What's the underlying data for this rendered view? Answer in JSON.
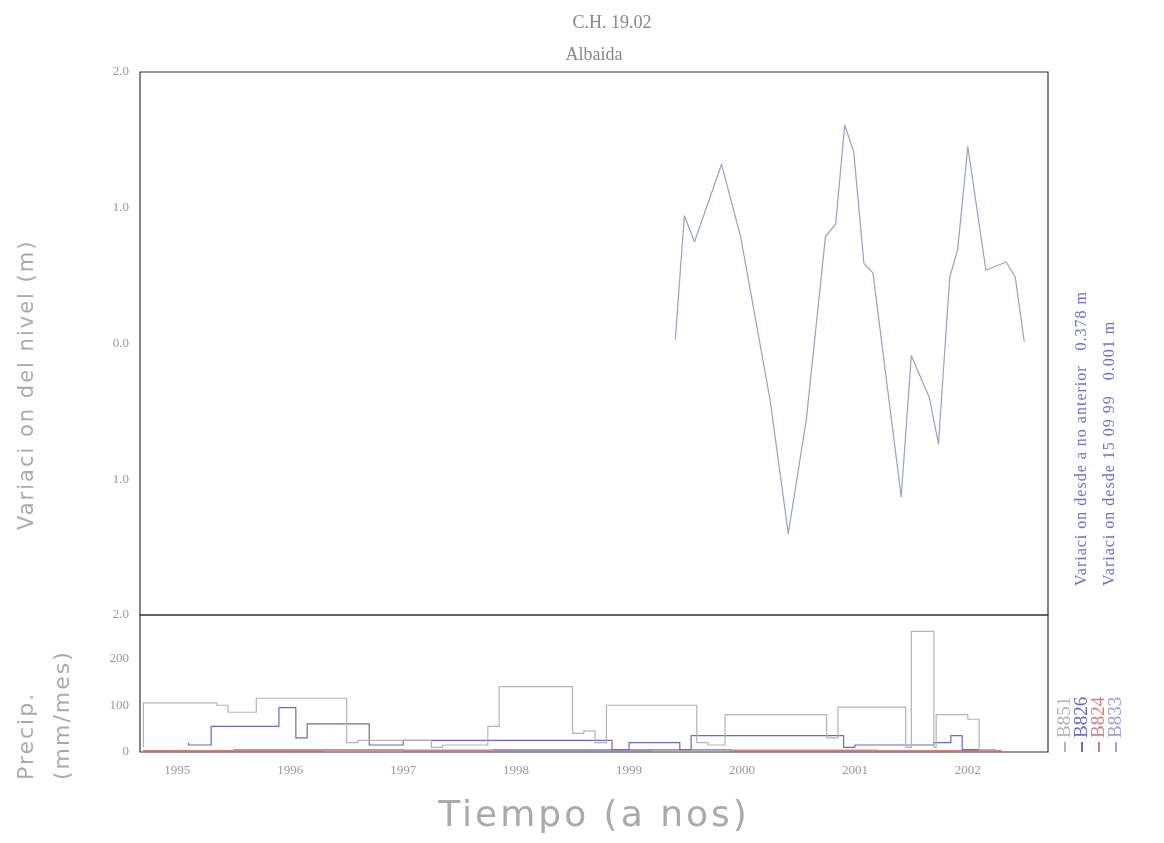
{
  "chart_data": [
    {
      "type": "line",
      "title": "C.H. 19.02",
      "subtitle": "Albaida",
      "ylabel": "Variaci on del nivel (m)",
      "tick_labels": "y",
      "annotations": [
        "Variaci on desde a no anterior   0.378 m",
        "Variaci on desde 15 09 99   0.001 m"
      ],
      "xlim": [
        1994.67,
        2002.71
      ],
      "ylim": [
        -2,
        2
      ],
      "yticks": [
        {
          "value": 2,
          "label": "2.0"
        },
        {
          "value": 1,
          "label": "1.0"
        },
        {
          "value": 0,
          "label": "0.0"
        },
        {
          "value": -1,
          "label": "1.0"
        },
        {
          "value": -2,
          "label": "2.0"
        }
      ],
      "series": [
        {
          "color": "#9aa0c8",
          "x": [
            1999.41,
            1999.49,
            1999.58,
            1999.82,
            1999.99,
            2000.25,
            2000.41,
            2000.57,
            2000.74,
            2000.83,
            2000.91,
            2000.99,
            2001.08,
            2001.16,
            2001.41,
            2001.5,
            2001.66,
            2001.74,
            2001.84,
            2001.91,
            2002.0,
            2002.16,
            2002.34,
            2002.42,
            2002.5
          ],
          "values": [
            0.03,
            0.94,
            0.75,
            1.32,
            0.78,
            -0.42,
            -1.4,
            -0.56,
            0.79,
            0.88,
            1.61,
            1.41,
            0.59,
            0.52,
            -1.13,
            -0.09,
            -0.4,
            -0.74,
            0.49,
            0.69,
            1.45,
            0.54,
            0.6,
            0.49,
            0.01
          ]
        }
      ]
    },
    {
      "type": "step",
      "ylabel": "Precip.\n(mm/mes)",
      "xlabel": "Tiempo (a nos)",
      "legend": "right",
      "xlim": [
        1994.67,
        2002.71
      ],
      "ylim": [
        0,
        293
      ],
      "yticks": [
        0,
        100,
        200
      ],
      "xticks": [
        1995,
        1996,
        1997,
        1998,
        1999,
        2000,
        2001,
        2002
      ],
      "series": [
        {
          "name": "B851",
          "color": "#b4b4b4",
          "x": [
            1994.7,
            1995.35,
            1995.45,
            1995.7,
            1996.5,
            1996.6,
            1997.25,
            1997.35,
            1997.75,
            1997.85,
            1998.5,
            1998.6,
            1998.7,
            1998.8,
            1999.6,
            1999.7,
            1999.85,
            2000.45,
            2000.55,
            2000.75,
            2000.85,
            2001.45,
            2001.5,
            2001.7,
            2001.72,
            2002.0,
            2002.1,
            2002.25
          ],
          "values": [
            10,
            105,
            100,
            85,
            115,
            20,
            25,
            10,
            15,
            55,
            140,
            40,
            45,
            20,
            100,
            20,
            15,
            80,
            80,
            80,
            30,
            96,
            10,
            258,
            10,
            80,
            70,
            5
          ]
        },
        {
          "name": "B826",
          "color": "#6a6ac0",
          "x": [
            1995.1,
            1995.3,
            1995.9,
            1996.05,
            1996.15,
            1996.7,
            1996.8,
            1997.0,
            1998.85,
            1999.0,
            1999.45,
            1999.55,
            2000.9,
            2001.0,
            2001.7,
            2001.85,
            2001.95,
            2002.1
          ],
          "values": [
            20,
            15,
            55,
            95,
            30,
            60,
            15,
            15,
            25,
            5,
            20,
            5,
            35,
            10,
            15,
            20,
            35,
            5
          ]
        },
        {
          "name": "B824",
          "color": "#d08080",
          "x": [
            1994.7,
            1996.3,
            1997.8,
            1999.9,
            2002.3
          ],
          "values": [
            5,
            3,
            4,
            5,
            3
          ]
        },
        {
          "name": "B833",
          "color": "#a0a0d8",
          "x": [
            1995.5,
            1997.0,
            1999.2,
            2001.2
          ],
          "values": [
            3,
            5,
            3,
            4
          ]
        }
      ]
    }
  ]
}
